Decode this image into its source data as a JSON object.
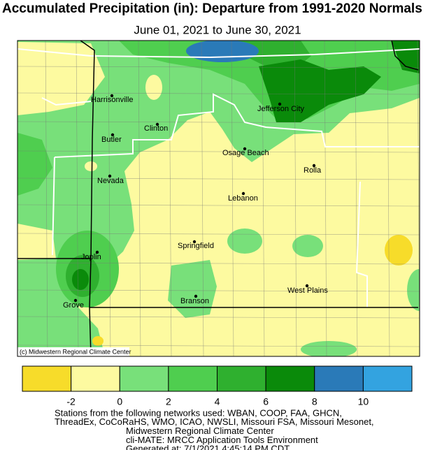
{
  "title": "Accumulated Precipitation (in): Departure from 1991-2020 Normals",
  "subtitle": "June 01, 2021 to June 30, 2021",
  "map": {
    "credit": "(c) Midwestern Regional Climate Center",
    "cities": [
      "Harrisonville",
      "Clinton",
      "Butler",
      "Jefferson City",
      "Osage Beach",
      "Rolla",
      "Nevada",
      "Lebanon",
      "Springfield",
      "Joplin",
      "West Plains",
      "Branson",
      "Grove"
    ]
  },
  "legend": {
    "colors": [
      "#f7dc2a",
      "#fdfaa0",
      "#78e07a",
      "#4fce4f",
      "#2fb02f",
      "#0a8a0a",
      "#2a7ab8",
      "#33a3e0"
    ],
    "ticks": [
      -2,
      0,
      2,
      4,
      6,
      8,
      10
    ]
  },
  "footer": {
    "lines": [
      "Stations from the following networks used: WBAN, COOP, FAA, GHCN,",
      "ThreadEx, CoCoRaHS, WMO, ICAO, NWSLI, Missouri FSA, Missouri Mesonet,",
      "Midwestern Regional Climate Center",
      "cli-MATE: MRCC Application Tools Environment",
      "Generated at: 7/1/2021 4:45:14 PM CDT"
    ]
  }
}
